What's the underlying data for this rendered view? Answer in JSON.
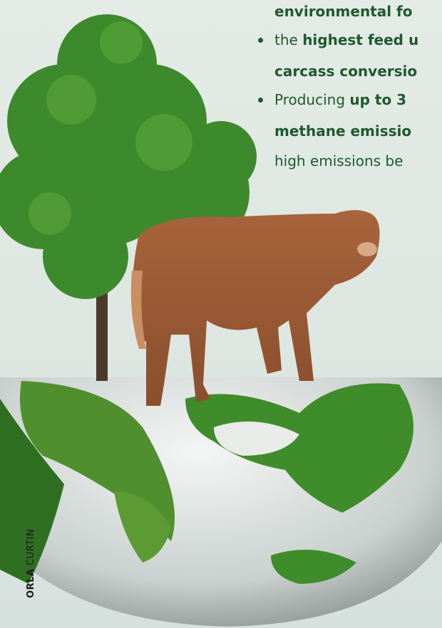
{
  "text_lines": [
    {
      "bullet": false,
      "segments": [
        {
          "text": "environmental fo",
          "bold": true
        }
      ]
    },
    {
      "bullet": true,
      "segments": [
        {
          "text": "the ",
          "bold": false
        },
        {
          "text": "highest feed u",
          "bold": true
        }
      ]
    },
    {
      "bullet": false,
      "segments": [
        {
          "text": "carcass conversio",
          "bold": true
        }
      ]
    },
    {
      "bullet": true,
      "segments": [
        {
          "text": "Producing ",
          "bold": false
        },
        {
          "text": "up to 3",
          "bold": true
        }
      ]
    },
    {
      "bullet": false,
      "segments": [
        {
          "text": "methane emissio",
          "bold": true
        }
      ]
    },
    {
      "bullet": false,
      "segments": [
        {
          "text": "high emissions be",
          "bold": false
        }
      ]
    }
  ],
  "credit": [
    {
      "text": "ORLA",
      "bold": true
    },
    {
      "text": " CURTIN",
      "bold": false
    }
  ]
}
